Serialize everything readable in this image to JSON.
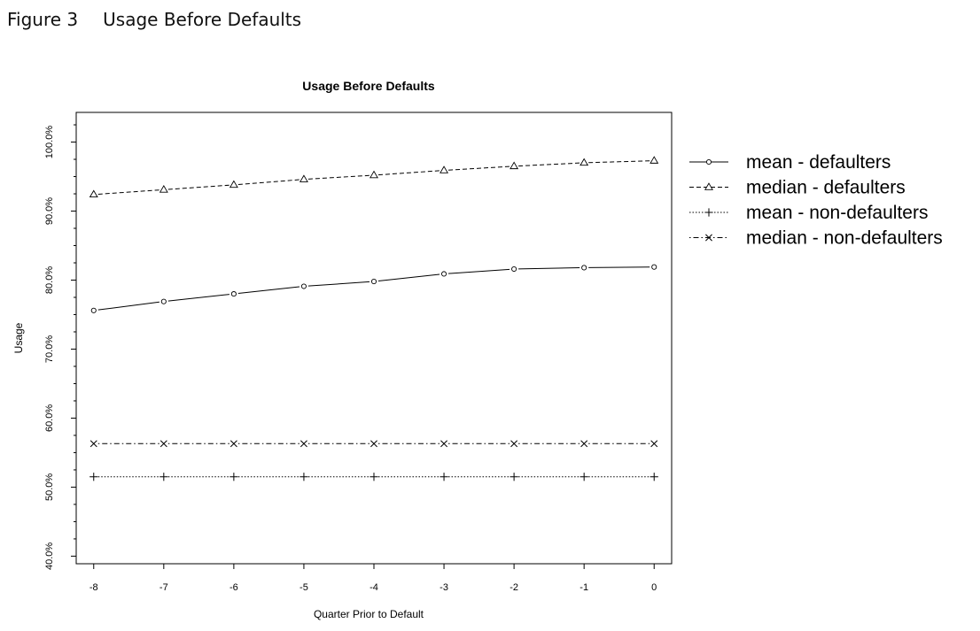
{
  "caption": {
    "figure_label": "Figure 3",
    "figure_title": "Usage Before Defaults"
  },
  "chart_data": {
    "type": "line",
    "title": "Usage Before Defaults",
    "xlabel": "Quarter Prior to Default",
    "ylabel": "Usage",
    "x": [
      -8,
      -7,
      -6,
      -5,
      -4,
      -3,
      -2,
      -1,
      0
    ],
    "x_tick_labels": [
      "-8",
      "-7",
      "-6",
      "-5",
      "-4",
      "-3",
      "-2",
      "-1",
      "0"
    ],
    "y_ticks": [
      40,
      50,
      60,
      70,
      80,
      90,
      100
    ],
    "y_tick_labels": [
      "40.0%",
      "50.0%",
      "60.0%",
      "70.0%",
      "80.0%",
      "90.0%",
      "100.0%"
    ],
    "ylim": [
      38.9,
      104.3
    ],
    "xlim": [
      -8.25,
      0.25
    ],
    "grid": false,
    "legend_position": "right",
    "series": [
      {
        "name": "mean - defaulters",
        "marker": "circle",
        "line": "solid",
        "values": [
          75.6,
          76.9,
          78.0,
          79.1,
          79.8,
          80.9,
          81.6,
          81.8,
          81.9
        ]
      },
      {
        "name": "median - defaulters",
        "marker": "triangle",
        "line": "dashed",
        "values": [
          92.4,
          93.1,
          93.8,
          94.6,
          95.2,
          95.9,
          96.5,
          97.0,
          97.3
        ]
      },
      {
        "name": "mean - non-defaulters",
        "marker": "plus",
        "line": "dotted",
        "values": [
          51.5,
          51.5,
          51.5,
          51.5,
          51.5,
          51.5,
          51.5,
          51.5,
          51.5
        ]
      },
      {
        "name": "median - non-defaulters",
        "marker": "cross",
        "line": "dotdash",
        "values": [
          56.3,
          56.3,
          56.3,
          56.3,
          56.3,
          56.3,
          56.3,
          56.3,
          56.3
        ]
      }
    ]
  }
}
